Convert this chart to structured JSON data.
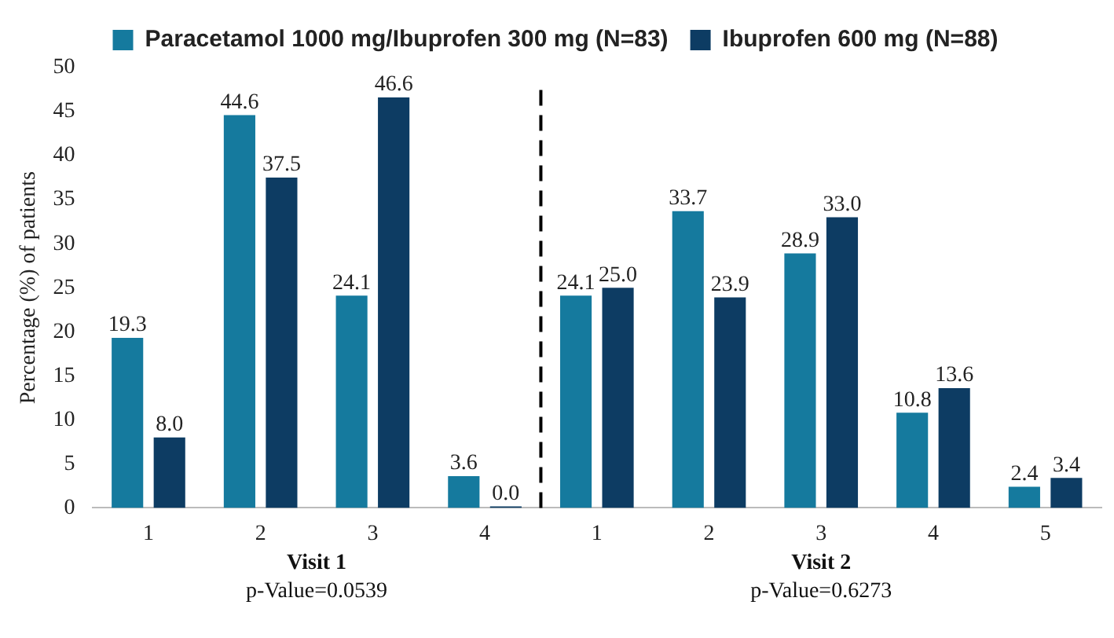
{
  "chart_data": {
    "type": "bar",
    "ylabel": "Percentage (%) of patients",
    "categories": [
      "1",
      "2",
      "3",
      "4",
      "1",
      "2",
      "3",
      "4",
      "5"
    ],
    "series": [
      {
        "name": "Paracetamol 1000 mg/Ibuprofen 300 mg (N=83)",
        "color": "#157a9e",
        "values": [
          19.3,
          44.6,
          24.1,
          3.6,
          24.1,
          33.7,
          28.9,
          10.8,
          2.4
        ],
        "value_labels": [
          "19.3",
          "44.6",
          "24.1",
          "3.6",
          "24.1",
          "33.7",
          "28.9",
          "10.8",
          "2.4"
        ]
      },
      {
        "name": "Ibuprofen 600 mg (N=88)",
        "color": "#0d3c63",
        "values": [
          8.0,
          37.5,
          46.6,
          0.0,
          25.0,
          23.9,
          33.0,
          13.6,
          3.4
        ],
        "value_labels": [
          "8.0",
          "37.5",
          "46.6",
          "0.0",
          "25.0",
          "23.9",
          "33.0",
          "13.6",
          "3.4"
        ]
      }
    ],
    "ylim": [
      0,
      50
    ],
    "yticks": [
      0,
      5,
      10,
      15,
      20,
      25,
      30,
      35,
      40,
      45,
      50
    ],
    "grid": false,
    "legend": "top",
    "annotations": [
      "Visit 1",
      "p-Value=0.0539",
      "Visit 2",
      "p-Value=0.6273"
    ]
  }
}
